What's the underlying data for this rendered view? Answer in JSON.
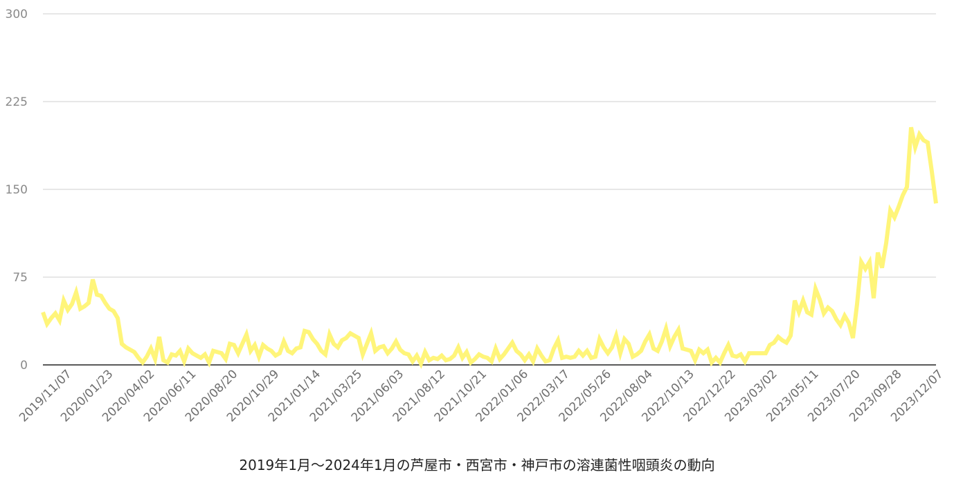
{
  "caption": "2019年1月〜2024年1月の芦屋市・西宮市・神戸市の溶連菌性咽頭炎の動向",
  "chart_data": {
    "type": "line",
    "title": "",
    "xlabel": "",
    "ylabel": "",
    "ylim": [
      0,
      300
    ],
    "yticks": [
      "0",
      "75",
      "150",
      "225",
      "300"
    ],
    "xticks": [
      "2019/11/07",
      "2020/01/23",
      "2020/04/02",
      "2020/06/11",
      "2020/08/20",
      "2020/10/29",
      "2021/01/14",
      "2021/03/25",
      "2021/06/03",
      "2021/08/12",
      "2021/10/21",
      "2022/01/06",
      "2022/03/17",
      "2022/05/26",
      "2022/08/04",
      "2022/10/13",
      "2022/12/22",
      "2023/03/02",
      "2023/05/11",
      "2023/07/20",
      "2023/09/28",
      "2023/12/07"
    ],
    "grid": true,
    "line_color": "#FFF57A",
    "series": [
      {
        "values": [
          45,
          35,
          40,
          44,
          38,
          55,
          47,
          52,
          62,
          48,
          50,
          53,
          73,
          60,
          59,
          53,
          48,
          46,
          40,
          18,
          15,
          13,
          11,
          6,
          2,
          7,
          14,
          5,
          24,
          4,
          2,
          9,
          8,
          12,
          3,
          14,
          10,
          8,
          6,
          9,
          2,
          12,
          11,
          10,
          5,
          18,
          17,
          10,
          18,
          26,
          12,
          17,
          7,
          17,
          14,
          12,
          8,
          10,
          20,
          12,
          10,
          14,
          15,
          29,
          28,
          22,
          18,
          12,
          9,
          26,
          18,
          15,
          21,
          23,
          27,
          25,
          23,
          9,
          18,
          27,
          12,
          15,
          16,
          10,
          14,
          20,
          13,
          10,
          9,
          3,
          8,
          1,
          11,
          4,
          6,
          5,
          8,
          4,
          5,
          8,
          15,
          6,
          11,
          2,
          5,
          9,
          7,
          6,
          3,
          14,
          5,
          9,
          14,
          19,
          12,
          9,
          4,
          9,
          3,
          14,
          8,
          3,
          4,
          14,
          21,
          6,
          7,
          6,
          7,
          12,
          8,
          12,
          6,
          7,
          22,
          15,
          10,
          15,
          25,
          10,
          22,
          18,
          7,
          9,
          12,
          20,
          26,
          14,
          12,
          20,
          31,
          16,
          24,
          30,
          14,
          13,
          12,
          4,
          13,
          10,
          13,
          2,
          6,
          2,
          10,
          17,
          8,
          7,
          9,
          3,
          10,
          10,
          10,
          10,
          10,
          17,
          19,
          24,
          21,
          19,
          25,
          55,
          45,
          55,
          45,
          43,
          65,
          56,
          44,
          49,
          46,
          39,
          34,
          42,
          36,
          23,
          52,
          88,
          82,
          88,
          57,
          96,
          83,
          104,
          132,
          126,
          135,
          145,
          152,
          203,
          186,
          197,
          192,
          190,
          165,
          138
        ]
      }
    ]
  }
}
